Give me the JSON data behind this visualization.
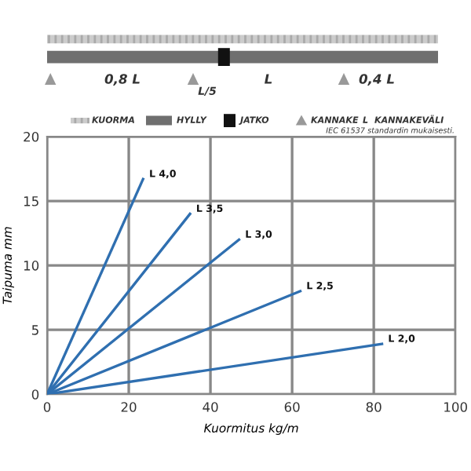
{
  "chart_data": {
    "type": "line",
    "xlabel": "Kuormitus kg/m",
    "ylabel": "Taipuma mm",
    "xlim": [
      0,
      100
    ],
    "xticks": [
      0,
      20,
      40,
      60,
      80,
      100
    ],
    "ylim": [
      0,
      20
    ],
    "yticks": [
      0,
      5,
      10,
      15,
      20
    ],
    "grid": true,
    "marker": "none",
    "line_style": "solid",
    "series": [
      {
        "name": "L 4,0",
        "color": "#2f6fb0",
        "x": [
          0,
          23.5
        ],
        "values": [
          0,
          16.7
        ]
      },
      {
        "name": "L 3,5",
        "color": "#2f6fb0",
        "x": [
          0,
          35
        ],
        "values": [
          0,
          14.0
        ]
      },
      {
        "name": "L 3,0",
        "color": "#2f6fb0",
        "x": [
          0,
          47
        ],
        "values": [
          0,
          12.0
        ]
      },
      {
        "name": "L 2,5",
        "color": "#2f6fb0",
        "x": [
          0,
          62
        ],
        "values": [
          0,
          8.0
        ]
      },
      {
        "name": "L 2,0",
        "color": "#2f6fb0",
        "x": [
          0,
          82
        ],
        "values": [
          0,
          3.9
        ]
      }
    ],
    "annotations": [
      "0,8 L",
      "L/5",
      "L",
      "0,4 L",
      "KUORMA",
      "HYLLY",
      "JATKO",
      "KANNAKE",
      "L",
      "KANNAKEVÄLI",
      "IEC 61537 standardin mukaisesti."
    ]
  }
}
